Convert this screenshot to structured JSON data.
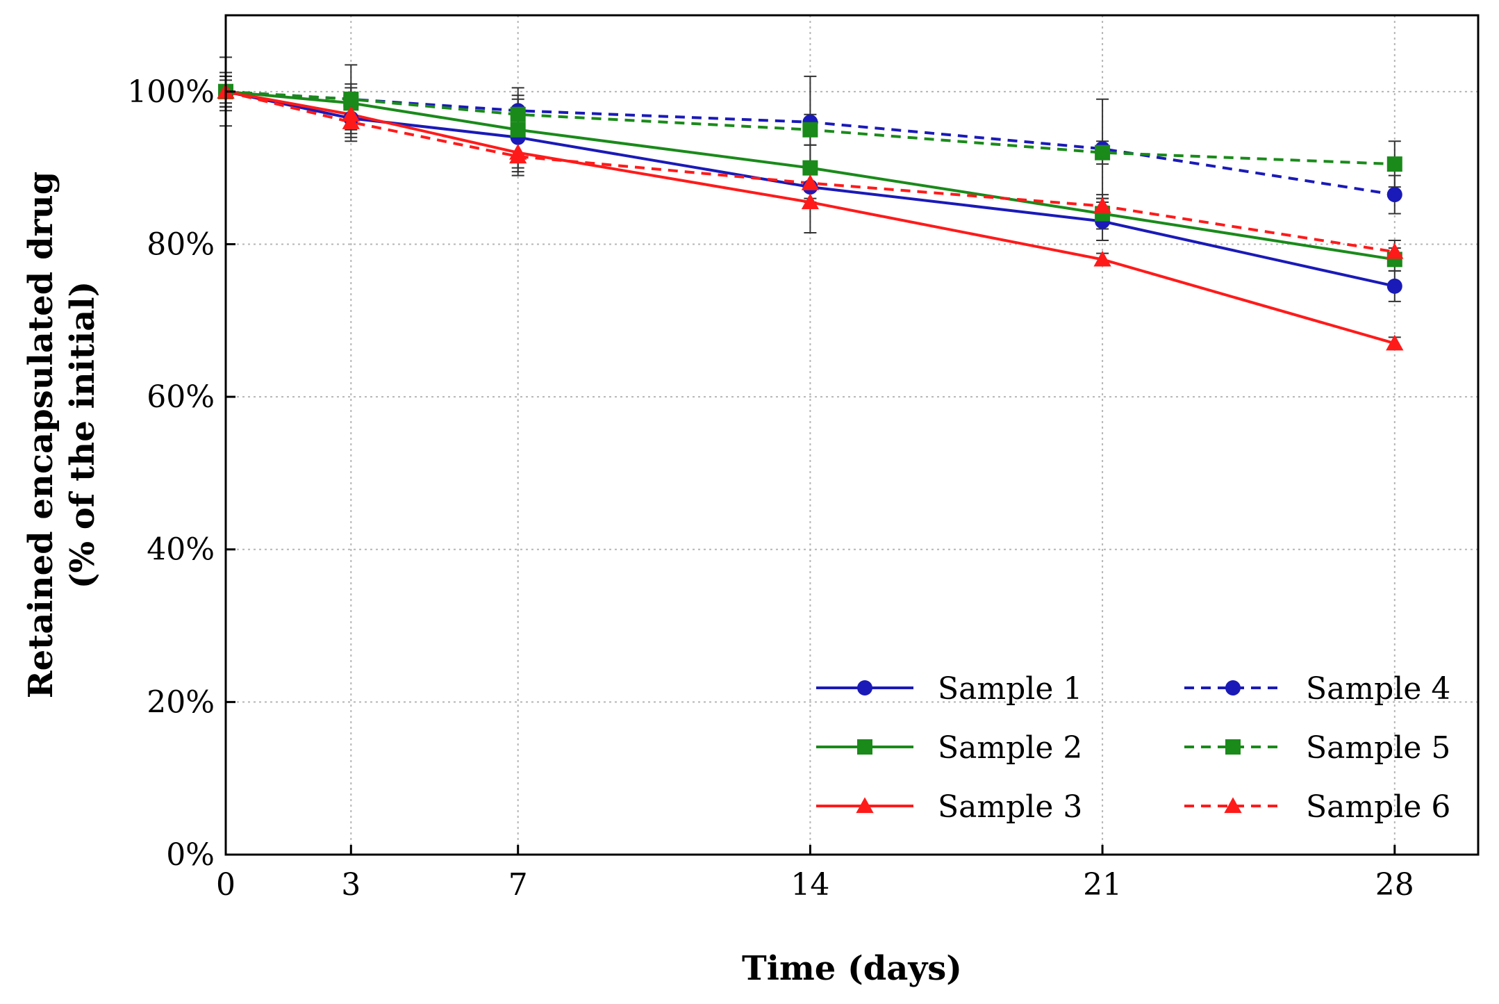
{
  "chart_data": {
    "type": "line",
    "title": "",
    "xlabel": "Time (days)",
    "ylabel_lines": [
      "Retained encapsulated drug",
      "(% of the initial)"
    ],
    "x": [
      0,
      3,
      7,
      14,
      21,
      28
    ],
    "xlim": [
      0,
      30
    ],
    "ylim": [
      0,
      110
    ],
    "xticks": [
      0,
      3,
      7,
      14,
      21,
      28
    ],
    "xtick_labels": [
      "0",
      "3",
      "7",
      "14",
      "21",
      "28"
    ],
    "yticks": [
      0,
      20,
      40,
      60,
      80,
      100
    ],
    "ytick_labels": [
      "0%",
      "20%",
      "40%",
      "60%",
      "80%",
      "100%"
    ],
    "grid": true,
    "legend_position": "bottom-right",
    "series": [
      {
        "name": "Sample 1",
        "color": "#1a1ab8",
        "dash": "solid",
        "marker": "circle",
        "values": [
          100,
          96.5,
          94,
          87.5,
          83,
          74.5
        ],
        "errors": [
          2,
          2.5,
          4,
          2,
          2.5,
          2
        ]
      },
      {
        "name": "Sample 2",
        "color": "#1a8a1a",
        "dash": "solid",
        "marker": "square",
        "values": [
          100,
          98.5,
          95,
          90,
          84,
          78
        ],
        "errors": [
          2.5,
          2,
          4,
          3,
          2,
          1.5
        ]
      },
      {
        "name": "Sample 3",
        "color": "#ff1a1a",
        "dash": "solid",
        "marker": "triangle",
        "values": [
          100,
          97,
          92,
          85.5,
          78,
          67
        ],
        "errors": [
          1.5,
          2,
          2.5,
          4,
          0.8,
          0.8
        ]
      },
      {
        "name": "Sample 4",
        "color": "#1a1ab8",
        "dash": "dashed",
        "marker": "circle",
        "values": [
          100,
          99,
          97.5,
          96,
          92.5,
          86.5
        ],
        "errors": [
          2,
          4.5,
          3,
          6,
          6.5,
          2.5
        ]
      },
      {
        "name": "Sample 5",
        "color": "#1a8a1a",
        "dash": "dashed",
        "marker": "square",
        "values": [
          100,
          99,
          97,
          95,
          92,
          90.5
        ],
        "errors": [
          2,
          2,
          2.5,
          2,
          1.5,
          3
        ]
      },
      {
        "name": "Sample 6",
        "color": "#ff1a1a",
        "dash": "dashed",
        "marker": "triangle",
        "values": [
          100,
          96,
          91.5,
          88,
          85,
          79
        ],
        "errors": [
          4.5,
          2.5,
          2.5,
          2,
          1.5,
          1.5
        ]
      }
    ]
  }
}
